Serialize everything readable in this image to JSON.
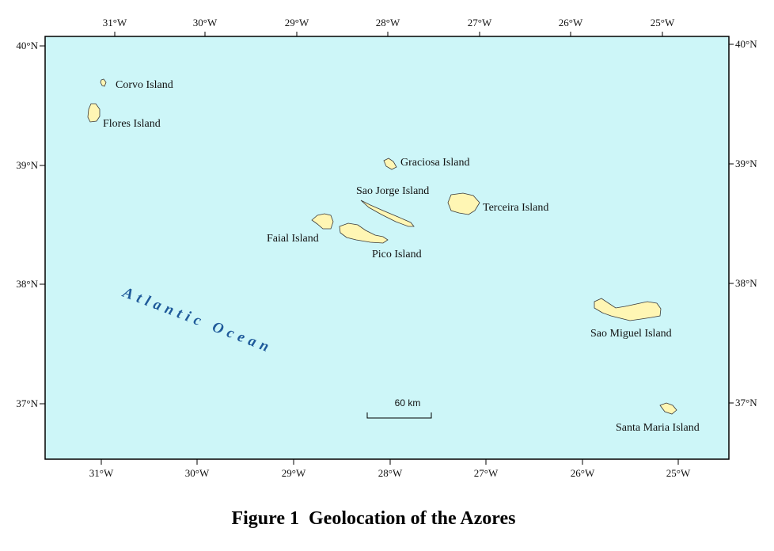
{
  "figure_caption": "Figure 1  Geolocation of the Azores",
  "colors": {
    "ocean": "#cdf6f8",
    "land": "#fff6b4",
    "ocean_label": "#1f5a9a",
    "frame": "#000000"
  },
  "ocean_label": "Atlantic Ocean",
  "scale_bar": {
    "label": "60 km"
  },
  "axes": {
    "top_ticks": [
      "31°W",
      "30°W",
      "29°W",
      "28°W",
      "27°W",
      "26°W",
      "25°W"
    ],
    "bottom_ticks": [
      "31°W",
      "30°W",
      "29°W",
      "28°W",
      "27°W",
      "26°W",
      "25°W"
    ],
    "left_ticks": [
      "40°N",
      "39°N",
      "38°N",
      "37°N"
    ],
    "right_ticks": [
      "40°N",
      "39°N",
      "38°N",
      "37°N"
    ]
  },
  "islands": [
    {
      "id": "corvo",
      "label": "Corvo Island"
    },
    {
      "id": "flores",
      "label": "Flores Island"
    },
    {
      "id": "graciosa",
      "label": "Graciosa Island"
    },
    {
      "id": "sao-jorge",
      "label": "Sao Jorge Island"
    },
    {
      "id": "terceira",
      "label": "Terceira Island"
    },
    {
      "id": "faial",
      "label": "Faial Island"
    },
    {
      "id": "pico",
      "label": "Pico Island"
    },
    {
      "id": "sao-miguel",
      "label": "Sao Miguel Island"
    },
    {
      "id": "santa-maria",
      "label": "Santa Maria Island"
    }
  ]
}
